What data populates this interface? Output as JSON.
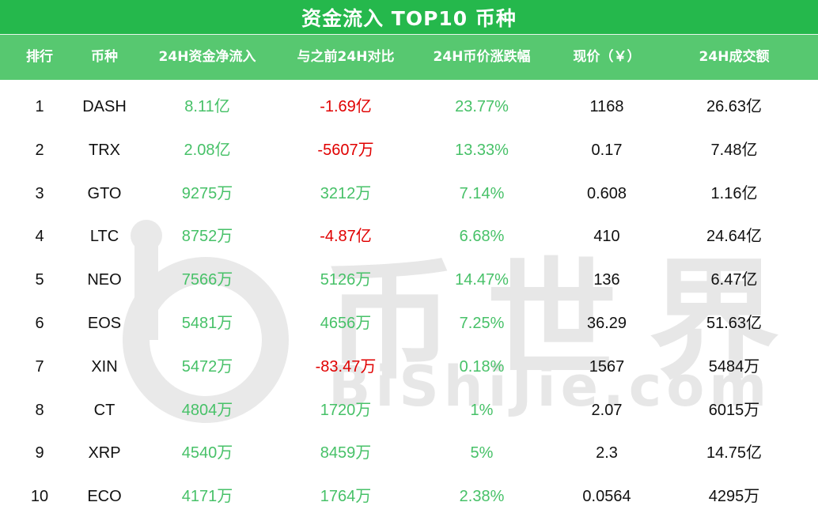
{
  "title": "资金流入 TOP10 币种",
  "colors": {
    "title_bg": "#25b84c",
    "header_bg": "#57c870",
    "positive": "#47c168",
    "negative": "#e00000",
    "watermark": "#e7e7e7"
  },
  "watermark": {
    "cn": "币世界",
    "en": "BiShiJie.com"
  },
  "chart_data": {
    "type": "table",
    "title": "资金流入 TOP10 币种",
    "columns": [
      "排行",
      "币种",
      "24H资金净流入",
      "与之前24H对比",
      "24H币价涨跌幅",
      "现价（￥）",
      "24H成交额"
    ],
    "rows": [
      [
        "1",
        "DASH",
        "8.11亿",
        "-1.69亿",
        "23.77%",
        "1168",
        "26.63亿"
      ],
      [
        "2",
        "TRX",
        "2.08亿",
        "-5607万",
        "13.33%",
        "0.17",
        "7.48亿"
      ],
      [
        "3",
        "GTO",
        "9275万",
        "3212万",
        "7.14%",
        "0.608",
        "1.16亿"
      ],
      [
        "4",
        "LTC",
        "8752万",
        "-4.87亿",
        "6.68%",
        "410",
        "24.64亿"
      ],
      [
        "5",
        "NEO",
        "7566万",
        "5126万",
        "14.47%",
        "136",
        "6.47亿"
      ],
      [
        "6",
        "EOS",
        "5481万",
        "4656万",
        "7.25%",
        "36.29",
        "51.63亿"
      ],
      [
        "7",
        "XIN",
        "5472万",
        "-83.47万",
        "0.18%",
        "1567",
        "5484万"
      ],
      [
        "8",
        "CT",
        "4804万",
        "1720万",
        "1%",
        "2.07",
        "6015万"
      ],
      [
        "9",
        "XRP",
        "4540万",
        "8459万",
        "5%",
        "2.3",
        "14.75亿"
      ],
      [
        "10",
        "ECO",
        "4171万",
        "1764万",
        "2.38%",
        "0.0564",
        "4295万"
      ]
    ]
  }
}
